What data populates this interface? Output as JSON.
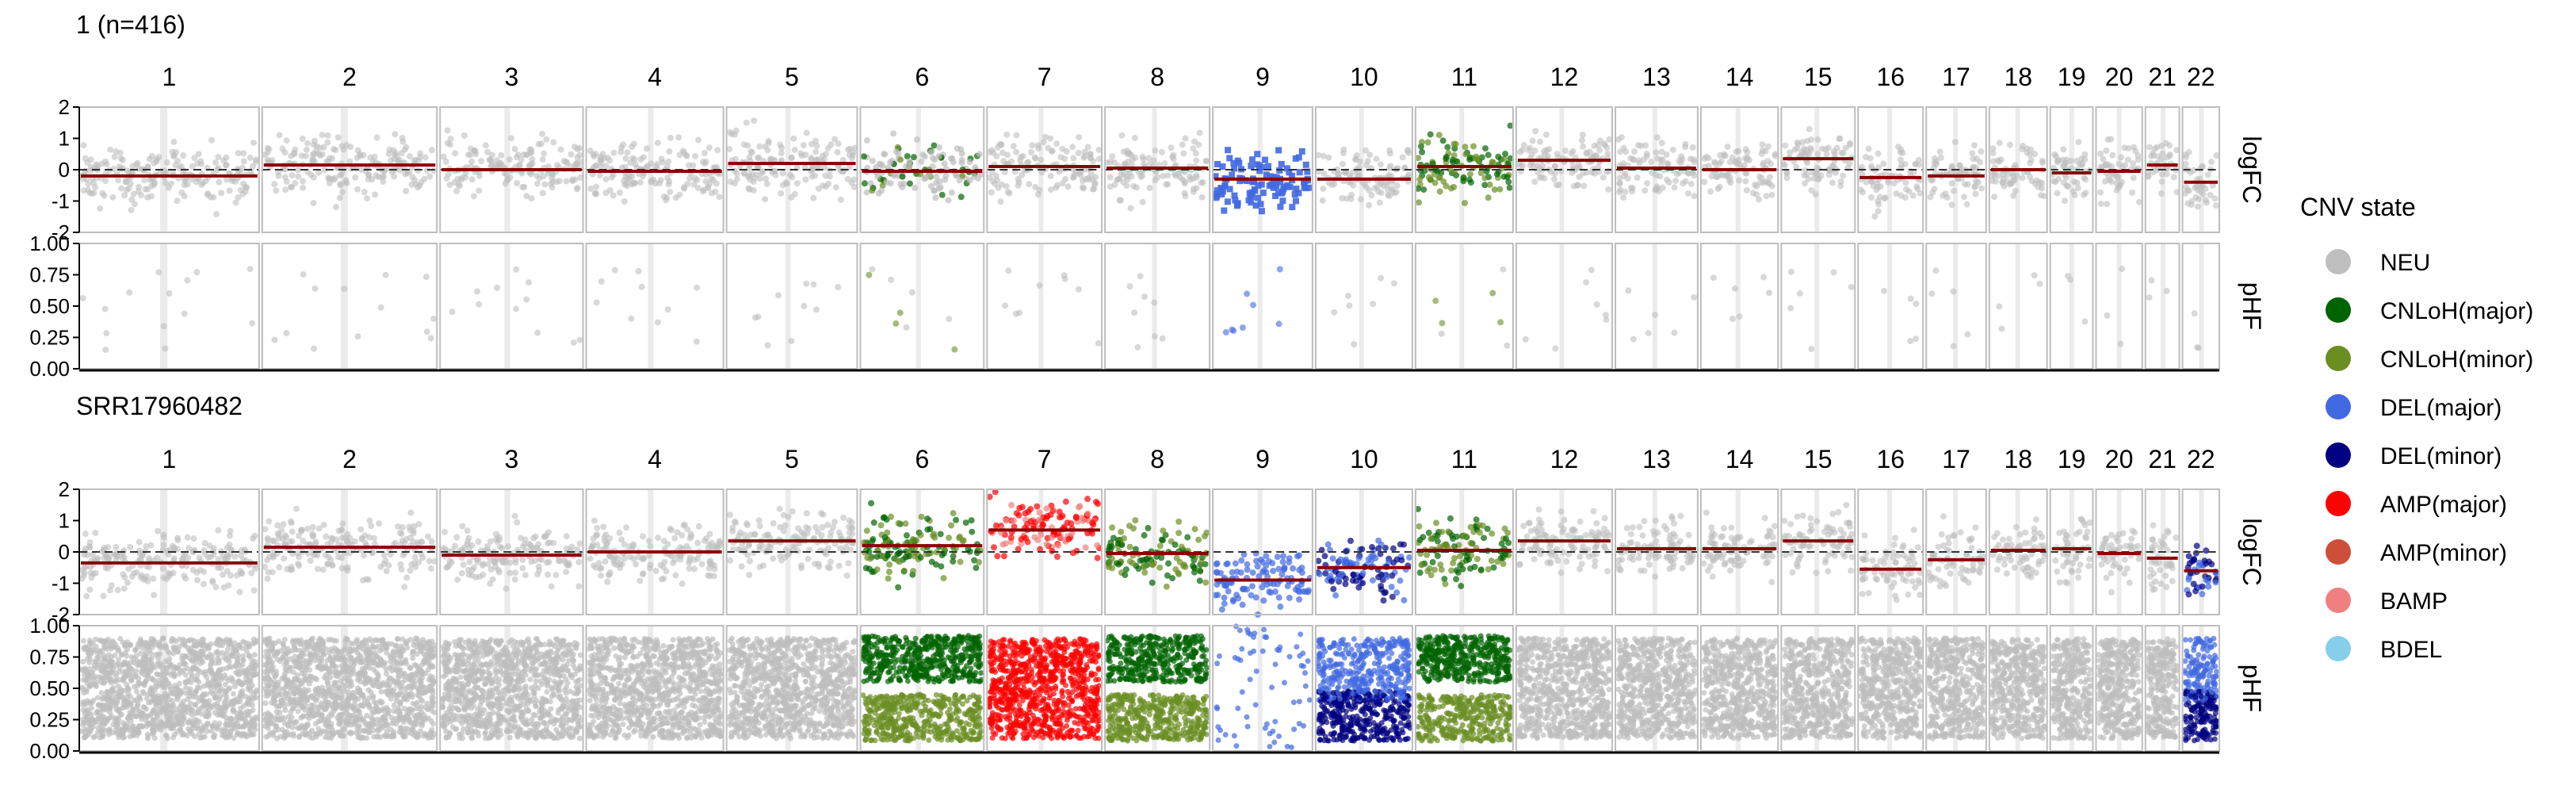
{
  "chart_data": [
    {
      "type": "scatter",
      "title": "1 (n=416)",
      "chromosomes": [
        "1",
        "2",
        "3",
        "4",
        "5",
        "6",
        "7",
        "8",
        "9",
        "10",
        "11",
        "12",
        "13",
        "14",
        "15",
        "16",
        "17",
        "18",
        "19",
        "20",
        "21",
        "22"
      ],
      "panels": [
        {
          "ylabel": "logFC",
          "ylim": [
            -2,
            2
          ],
          "yticks": [
            "2",
            "1",
            "0",
            "-1",
            "-2"
          ],
          "tick_values": [
            2,
            1,
            0,
            -1,
            -2
          ],
          "reference_line": 0
        },
        {
          "ylabel": "pHF",
          "ylim": [
            0,
            1
          ],
          "yticks": [
            "1.00",
            "0.75",
            "0.50",
            "0.25",
            "0.00"
          ],
          "tick_values": [
            1,
            0.75,
            0.5,
            0.25,
            0
          ]
        }
      ],
      "states_by_chromosome": {
        "1": "NEU",
        "2": "NEU",
        "3": "NEU",
        "4": "NEU",
        "5": "NEU",
        "6": "CNLoH",
        "7": "NEU",
        "8": "NEU",
        "9": "DEL",
        "10": "NEU",
        "11": "CNLoH",
        "12": "NEU",
        "13": "NEU",
        "14": "NEU",
        "15": "NEU",
        "16": "NEU",
        "17": "NEU",
        "18": "NEU",
        "19": "NEU",
        "20": "NEU",
        "21": "NEU",
        "22": "NEU"
      },
      "segment_logFC": {
        "1": -0.2,
        "2": 0.15,
        "3": 0.0,
        "4": -0.05,
        "5": 0.2,
        "6": -0.05,
        "7": 0.1,
        "8": 0.05,
        "9": -0.3,
        "10": -0.3,
        "11": 0.1,
        "12": 0.3,
        "13": 0.05,
        "14": 0.0,
        "15": 0.35,
        "16": -0.25,
        "17": -0.2,
        "18": 0.0,
        "19": -0.1,
        "20": -0.05,
        "21": 0.15,
        "22": -0.4
      },
      "pHF_density": "sparse"
    },
    {
      "type": "scatter",
      "title": "SRR17960482",
      "chromosomes": [
        "1",
        "2",
        "3",
        "4",
        "5",
        "6",
        "7",
        "8",
        "9",
        "10",
        "11",
        "12",
        "13",
        "14",
        "15",
        "16",
        "17",
        "18",
        "19",
        "20",
        "21",
        "22"
      ],
      "panels": [
        {
          "ylabel": "logFC",
          "ylim": [
            -2,
            2
          ],
          "yticks": [
            "2",
            "1",
            "0",
            "-1",
            "-2"
          ],
          "tick_values": [
            2,
            1,
            0,
            -1,
            -2
          ],
          "reference_line": 0
        },
        {
          "ylabel": "pHF",
          "ylim": [
            0,
            1
          ],
          "yticks": [
            "1.00",
            "0.75",
            "0.50",
            "0.25",
            "0.00"
          ],
          "tick_values": [
            1,
            0.75,
            0.5,
            0.25,
            0
          ]
        }
      ],
      "states_by_chromosome": {
        "1": "NEU",
        "2": "NEU",
        "3": "NEU",
        "4": "NEU",
        "5": "NEU",
        "6": "CNLoH",
        "7": "AMP",
        "8": "CNLoH",
        "9": "DEL",
        "10": "DEL",
        "11": "CNLoH",
        "12": "NEU",
        "13": "NEU",
        "14": "NEU",
        "15": "NEU",
        "16": "NEU",
        "17": "NEU",
        "18": "NEU",
        "19": "NEU",
        "20": "NEU",
        "21": "NEU",
        "22": "DEL"
      },
      "segment_logFC": {
        "1": -0.35,
        "2": 0.15,
        "3": -0.1,
        "4": 0.0,
        "5": 0.35,
        "6": 0.2,
        "7": 0.7,
        "8": -0.05,
        "9": -0.9,
        "10": -0.5,
        "11": 0.05,
        "12": 0.35,
        "13": 0.1,
        "14": 0.1,
        "15": 0.35,
        "16": -0.55,
        "17": -0.25,
        "18": 0.05,
        "19": 0.1,
        "20": -0.05,
        "21": -0.2,
        "22": -0.6
      },
      "pHF_density": "dense"
    }
  ],
  "chromosome_widths": {
    "1": 249,
    "2": 242,
    "3": 198,
    "4": 190,
    "5": 181,
    "6": 171,
    "7": 159,
    "8": 145,
    "9": 138,
    "10": 134,
    "11": 135,
    "12": 133,
    "13": 114,
    "14": 107,
    "15": 102,
    "16": 90,
    "17": 83,
    "18": 80,
    "19": 59,
    "20": 64,
    "21": 47,
    "22": 51
  },
  "legend": {
    "title": "CNV state",
    "position": "right",
    "items": [
      {
        "label": "NEU",
        "color": "#BEBEBE"
      },
      {
        "label": "CNLoH(major)",
        "color": "#006400"
      },
      {
        "label": "CNLoH(minor)",
        "color": "#6B8E23"
      },
      {
        "label": "DEL(major)",
        "color": "#4169E1"
      },
      {
        "label": "DEL(minor)",
        "color": "#000080"
      },
      {
        "label": "AMP(major)",
        "color": "#FF0000"
      },
      {
        "label": "AMP(minor)",
        "color": "#CD4F39"
      },
      {
        "label": "BAMP",
        "color": "#F08080"
      },
      {
        "label": "BDEL",
        "color": "#87CEEB"
      }
    ]
  },
  "colors": {
    "segment": "#8B0000",
    "panel_border": "#BDBDBD",
    "axis": "#000000"
  }
}
